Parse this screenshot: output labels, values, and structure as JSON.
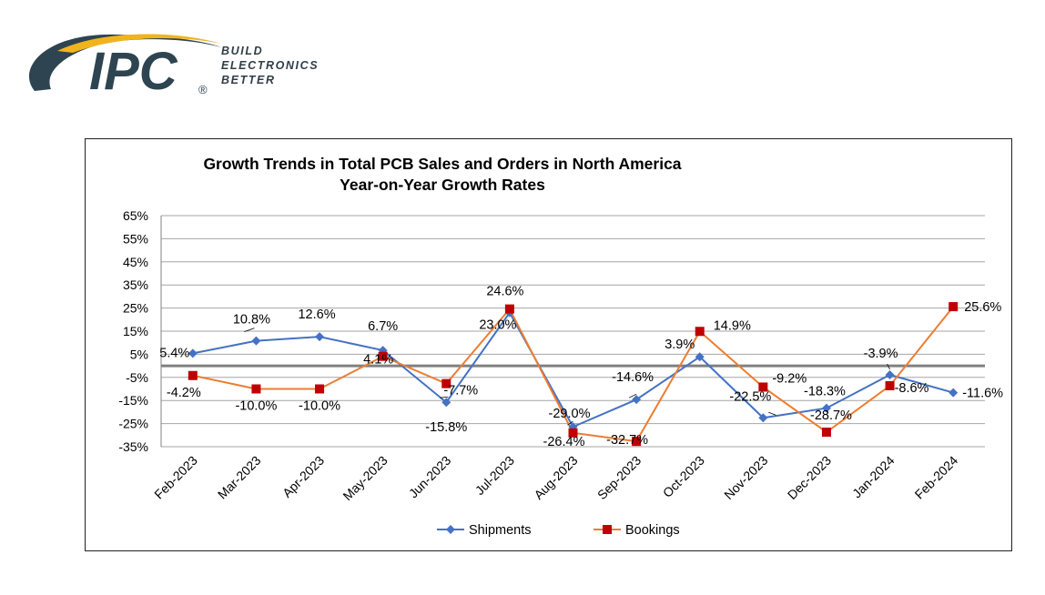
{
  "logo": {
    "brand": "IPC",
    "tagline": [
      "BUILD",
      "ELECTRONICS",
      "BETTER"
    ],
    "registered_mark": "®",
    "colors": {
      "navy": "#2e4451",
      "gold": "#f2b41c"
    }
  },
  "chart_data": {
    "type": "line",
    "title": "Growth Trends in Total PCB Sales and Orders in North America",
    "subtitle": "Year-on-Year Growth Rates",
    "xlabel": "",
    "ylabel": "",
    "ylim": [
      -35,
      65
    ],
    "yticks": [
      65,
      55,
      45,
      35,
      25,
      15,
      5,
      -5,
      -15,
      -25,
      -35
    ],
    "ytick_labels": [
      "65%",
      "55%",
      "45%",
      "35%",
      "25%",
      "15%",
      "5%",
      "-5%",
      "-15%",
      "-25%",
      "-35%"
    ],
    "categories": [
      "Feb-2023",
      "Mar-2023",
      "Apr-2023",
      "May-2023",
      "Jun-2023",
      "Jul-2023",
      "Aug-2023",
      "Sep-2023",
      "Oct-2023",
      "Nov-2023",
      "Dec-2023",
      "Jan-2024",
      "Feb-2024"
    ],
    "grid": true,
    "legend_position": "bottom",
    "series": [
      {
        "name": "Shipments",
        "color": "#4472c4",
        "marker": "diamond",
        "values": [
          5.4,
          10.8,
          12.6,
          6.7,
          -15.8,
          23.0,
          -26.4,
          -14.6,
          3.9,
          -22.5,
          -18.3,
          -3.9,
          -11.6
        ],
        "labels": [
          "5.4%",
          "10.8%",
          "12.6%",
          "6.7%",
          "-15.8%",
          "23.0%",
          "-26.4%",
          "-14.6%",
          "3.9%",
          "-22.5%",
          "-18.3%",
          "-3.9%",
          "-11.6%"
        ]
      },
      {
        "name": "Bookings",
        "color": "#ed7d31",
        "marker": "square",
        "marker_color": "#c00000",
        "values": [
          -4.2,
          -10.0,
          -10.0,
          4.1,
          -7.7,
          24.6,
          -29.0,
          -32.7,
          14.9,
          -9.2,
          -28.7,
          -8.6,
          25.6
        ],
        "labels": [
          "-4.2%",
          "-10.0%",
          "-10.0%",
          "4.1%",
          "-7.7%",
          "24.6%",
          "-29.0%",
          "-32.7%",
          "14.9%",
          "-9.2%",
          "-28.7%",
          "-8.6%",
          "25.6%"
        ]
      }
    ]
  }
}
